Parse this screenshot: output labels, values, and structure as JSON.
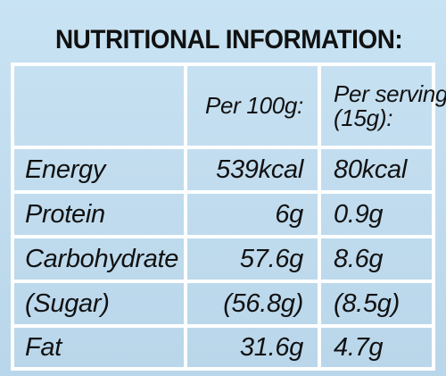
{
  "title": "NUTRITIONAL INFORMATION:",
  "header": {
    "per100": "Per 100g:",
    "perServingLine1": "Per serving",
    "perServingLine2": "(15g):"
  },
  "rows": [
    {
      "name": "Energy",
      "per100": "539kcal",
      "serving": "80kcal"
    },
    {
      "name": "Protein",
      "per100": "6g",
      "serving": "0.9g"
    },
    {
      "name": "Carbohydrate",
      "per100": "57.6g",
      "serving": "8.6g"
    },
    {
      "name": "(Sugar)",
      "per100": "(56.8g)",
      "serving": "(8.5g)"
    },
    {
      "name": "Fat",
      "per100": "31.6g",
      "serving": "4.7g"
    }
  ],
  "colors": {
    "background": "#c4dff0",
    "lines": "#ffffff",
    "text": "#111111"
  }
}
